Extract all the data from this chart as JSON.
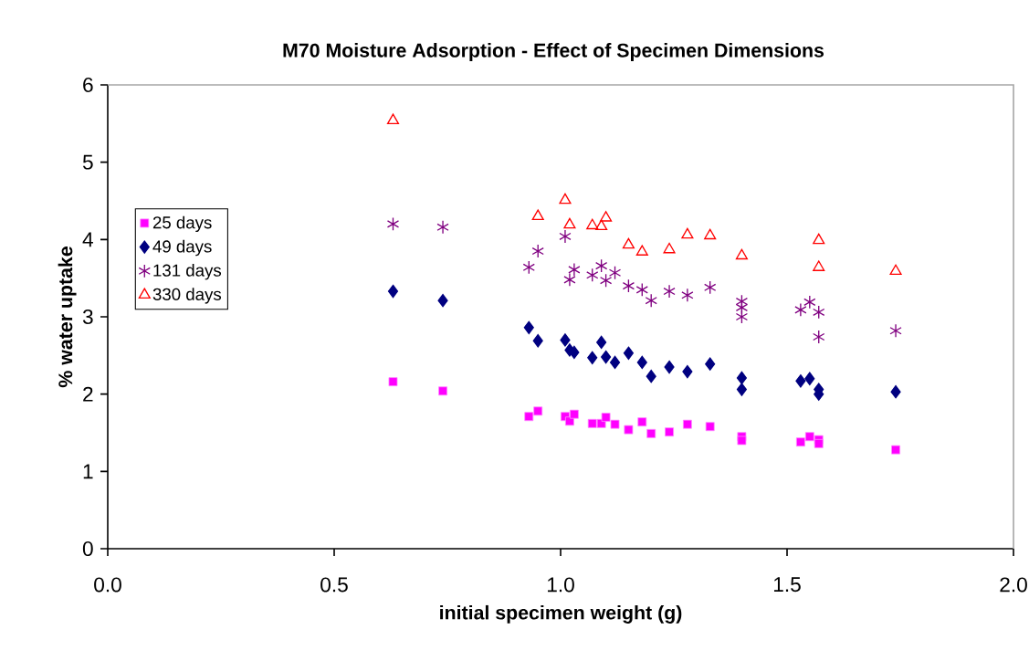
{
  "chart_data": {
    "type": "scatter",
    "title": "M70 Moisture Adsorption - Effect of Specimen Dimensions",
    "xlabel": "initial specimen weight (g)",
    "ylabel": "% water uptake",
    "xlim": [
      0,
      2
    ],
    "ylim": [
      0,
      6
    ],
    "xticks": [
      {
        "value": 0,
        "label": "0.0"
      },
      {
        "value": 0.5,
        "label": "0.5"
      },
      {
        "value": 1,
        "label": "1.0"
      },
      {
        "value": 1.5,
        "label": "1.5"
      },
      {
        "value": 2,
        "label": "2.0"
      }
    ],
    "yticks": [
      0,
      1,
      2,
      3,
      4,
      5,
      6
    ],
    "grid": false,
    "legend": "left",
    "series": [
      {
        "name": "25 days",
        "color": "#ff00ff",
        "marker": "square",
        "x": [
          0.63,
          0.74,
          0.93,
          0.95,
          1.01,
          1.02,
          1.03,
          1.07,
          1.09,
          1.1,
          1.12,
          1.15,
          1.18,
          1.2,
          1.24,
          1.28,
          1.33,
          1.4,
          1.4,
          1.53,
          1.55,
          1.57,
          1.57,
          1.74
        ],
        "values": [
          2.16,
          2.04,
          1.71,
          1.78,
          1.71,
          1.65,
          1.74,
          1.62,
          1.62,
          1.7,
          1.61,
          1.54,
          1.64,
          1.49,
          1.51,
          1.61,
          1.58,
          1.45,
          1.4,
          1.38,
          1.45,
          1.41,
          1.36,
          1.28
        ]
      },
      {
        "name": "49 days",
        "color": "#000080",
        "marker": "diamond",
        "x": [
          0.63,
          0.74,
          0.93,
          0.95,
          1.01,
          1.02,
          1.03,
          1.07,
          1.09,
          1.1,
          1.12,
          1.15,
          1.18,
          1.2,
          1.24,
          1.28,
          1.33,
          1.4,
          1.4,
          1.53,
          1.55,
          1.57,
          1.57,
          1.74
        ],
        "values": [
          3.33,
          3.21,
          2.86,
          2.69,
          2.7,
          2.57,
          2.54,
          2.47,
          2.67,
          2.48,
          2.41,
          2.53,
          2.41,
          2.23,
          2.35,
          2.29,
          2.39,
          2.21,
          2.06,
          2.17,
          2.2,
          2.06,
          2.0,
          2.03
        ]
      },
      {
        "name": "131 days",
        "color": "#800080",
        "marker": "cross",
        "x": [
          0.63,
          0.74,
          0.93,
          0.95,
          1.01,
          1.03,
          1.02,
          1.07,
          1.09,
          1.1,
          1.12,
          1.15,
          1.18,
          1.2,
          1.24,
          1.28,
          1.33,
          1.4,
          1.4,
          1.4,
          1.53,
          1.55,
          1.57,
          1.57,
          1.74
        ],
        "values": [
          4.2,
          4.16,
          3.64,
          3.85,
          4.04,
          3.61,
          3.48,
          3.54,
          3.66,
          3.47,
          3.57,
          3.4,
          3.35,
          3.21,
          3.33,
          3.28,
          3.38,
          3.2,
          3.12,
          3.0,
          3.09,
          3.19,
          3.06,
          2.74,
          2.82
        ]
      },
      {
        "name": "330 days",
        "color": "#ff0000",
        "marker": "triangle",
        "x": [
          0.63,
          0.95,
          1.01,
          1.02,
          1.07,
          1.09,
          1.1,
          1.15,
          1.18,
          1.24,
          1.28,
          1.33,
          1.4,
          1.57,
          1.57,
          1.74
        ],
        "values": [
          5.54,
          4.3,
          4.51,
          4.19,
          4.18,
          4.17,
          4.28,
          3.93,
          3.84,
          3.87,
          4.06,
          4.05,
          3.79,
          3.99,
          3.64,
          3.59
        ]
      }
    ]
  }
}
